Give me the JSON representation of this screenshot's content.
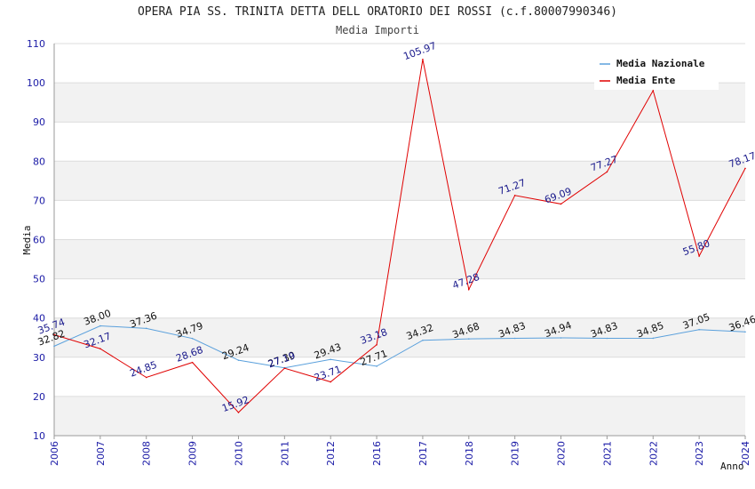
{
  "chart_data": {
    "type": "line",
    "title": "OPERA PIA SS. TRINITA DETTA DELL ORATORIO DEI ROSSI (c.f.80007990346)",
    "subtitle": "Media Importi",
    "xlabel": "Anno",
    "ylabel": "Media",
    "categories": [
      "2006",
      "2007",
      "2008",
      "2009",
      "2010",
      "2011",
      "2012",
      "2016",
      "2017",
      "2018",
      "2019",
      "2020",
      "2021",
      "2022",
      "2023",
      "2024"
    ],
    "ylim": [
      10,
      110
    ],
    "yticks": [
      10,
      20,
      30,
      40,
      50,
      60,
      70,
      80,
      90,
      100,
      110
    ],
    "grid": true,
    "legend_position": "top-right",
    "series": [
      {
        "name": "Media Nazionale",
        "color": "#5aa0dc",
        "values": [
          32.82,
          38.0,
          37.36,
          34.79,
          29.24,
          27.3,
          29.43,
          27.71,
          34.32,
          34.68,
          34.83,
          34.94,
          34.83,
          34.85,
          37.05,
          36.46
        ],
        "labels": [
          "32.82",
          "38.00",
          "37.36",
          "34.79",
          "29.24",
          "27.30",
          "29.43",
          "27.71",
          "34.32",
          "34.68",
          "34.83",
          "34.94",
          "34.83",
          "34.85",
          "37.05",
          "36.46"
        ]
      },
      {
        "name": "Media Ente",
        "color": "#e00000",
        "values": [
          35.74,
          32.17,
          24.85,
          28.68,
          15.92,
          27.19,
          23.71,
          33.18,
          105.97,
          47.28,
          71.27,
          69.09,
          77.27,
          98.0,
          55.8,
          78.17
        ],
        "labels": [
          "35.74",
          "32.17",
          "24.85",
          "28.68",
          "15.92",
          "27.19",
          "23.71",
          "33.18",
          "105.97",
          "47.28",
          "71.27",
          "69.09",
          "77.27",
          "",
          "55.80",
          "78.17"
        ]
      }
    ]
  }
}
